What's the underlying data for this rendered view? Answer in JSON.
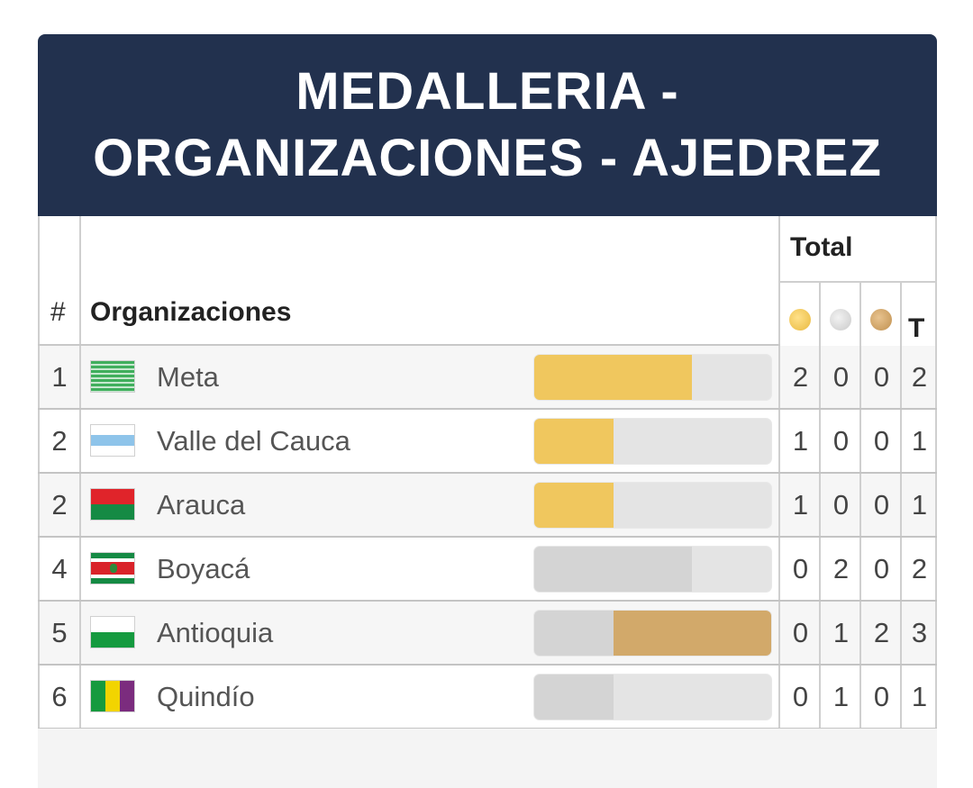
{
  "header": {
    "title_line1": "MEDALLERIA -",
    "title_line2": "ORGANIZACIONES - AJEDREZ"
  },
  "columns": {
    "rank": "#",
    "organization": "Organizaciones",
    "total_group": "Total",
    "total": "T"
  },
  "colors": {
    "header_bg": "#22314e",
    "gold": "#f0c75e",
    "silver": "#d4d4d4",
    "bronze": "#d2a96a",
    "bar_bg": "#e4e4e4"
  },
  "rows": [
    {
      "rank": "1",
      "name": "Meta",
      "flag": "meta-flag",
      "gold": "2",
      "silver": "0",
      "bronze": "0",
      "total": "2"
    },
    {
      "rank": "2",
      "name": "Valle del Cauca",
      "flag": "valle-del-cauca-flag",
      "gold": "1",
      "silver": "0",
      "bronze": "0",
      "total": "1"
    },
    {
      "rank": "2",
      "name": "Arauca",
      "flag": "arauca-flag",
      "gold": "1",
      "silver": "0",
      "bronze": "0",
      "total": "1"
    },
    {
      "rank": "4",
      "name": "Boyacá",
      "flag": "boyaca-flag",
      "gold": "0",
      "silver": "2",
      "bronze": "0",
      "total": "2"
    },
    {
      "rank": "5",
      "name": "Antioquia",
      "flag": "antioquia-flag",
      "gold": "0",
      "silver": "1",
      "bronze": "2",
      "total": "3"
    },
    {
      "rank": "6",
      "name": "Quindío",
      "flag": "quindio-flag",
      "gold": "0",
      "silver": "1",
      "bronze": "0",
      "total": "1"
    }
  ]
}
